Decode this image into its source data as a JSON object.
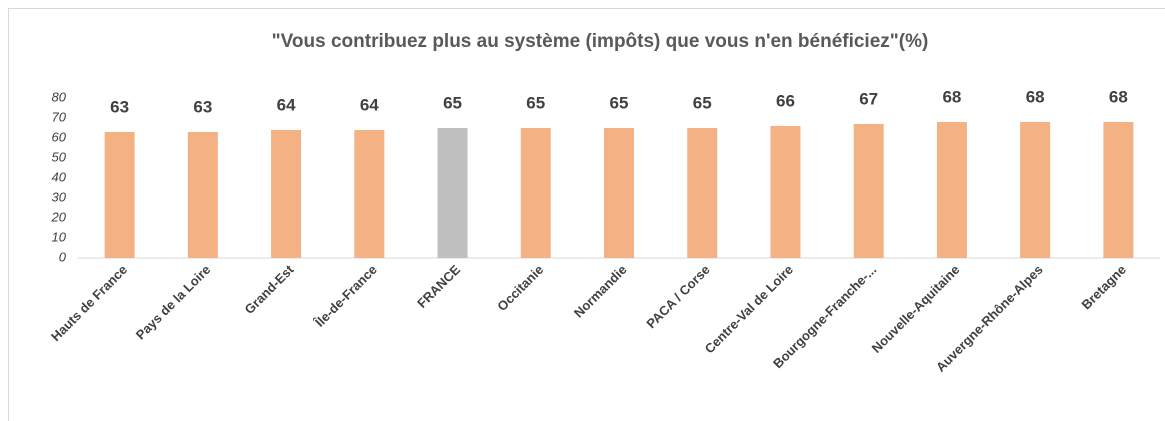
{
  "chart_data": {
    "type": "bar",
    "title": "\"Vous contribuez plus au système (impôts) que vous n'en bénéficiez\"(%)",
    "categories": [
      "Hauts de France",
      "Pays de la Loire",
      "Grand-Est",
      "Île-de-France",
      "FRANCE",
      "Occitanie",
      "Normandie",
      "PACA / Corse",
      "Centre-Val de Loire",
      "Bourgogne-Franche-...",
      "Nouvelle-Aquitaine",
      "Auvergne-Rhône-Alpes",
      "Bretagne"
    ],
    "values": [
      63,
      63,
      64,
      64,
      65,
      65,
      65,
      65,
      66,
      67,
      68,
      68,
      68
    ],
    "colors": [
      "#f4b183",
      "#f4b183",
      "#f4b183",
      "#f4b183",
      "#bfbfbf",
      "#f4b183",
      "#f4b183",
      "#f4b183",
      "#f4b183",
      "#f4b183",
      "#f4b183",
      "#f4b183",
      "#f4b183"
    ],
    "ylim": [
      0,
      80
    ],
    "yticks": [
      0,
      10,
      20,
      30,
      40,
      50,
      60,
      70,
      80
    ],
    "grid": false
  }
}
